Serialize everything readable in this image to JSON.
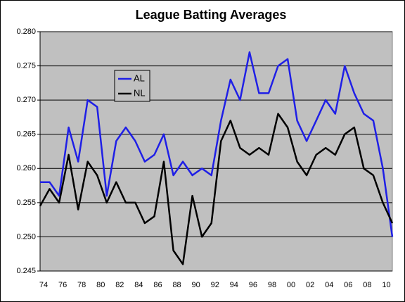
{
  "chart_data": {
    "type": "line",
    "title": "League Batting Averages",
    "categories": [
      "74",
      null,
      "76",
      null,
      "78",
      null,
      "80",
      null,
      "82",
      null,
      "84",
      null,
      "86",
      null,
      "88",
      null,
      "90",
      null,
      "92",
      null,
      "94",
      null,
      "96",
      null,
      "98",
      null,
      "00",
      null,
      "02",
      null,
      "04",
      null,
      "06",
      null,
      "08",
      null,
      "10",
      null
    ],
    "series": [
      {
        "name": "AL",
        "color": "#1f1fe6",
        "values": [
          0.258,
          0.258,
          0.256,
          0.266,
          0.261,
          0.27,
          0.269,
          0.256,
          0.264,
          0.266,
          0.264,
          0.261,
          0.262,
          0.265,
          0.259,
          0.261,
          0.259,
          0.26,
          0.259,
          0.267,
          0.273,
          0.27,
          0.277,
          0.271,
          0.271,
          0.275,
          0.276,
          0.267,
          0.264,
          0.267,
          0.27,
          0.268,
          0.275,
          0.271,
          0.268,
          0.267,
          0.26,
          0.25
        ]
      },
      {
        "name": "NL",
        "color": "#000000",
        "values": [
          0.2545,
          0.257,
          0.255,
          0.262,
          0.254,
          0.261,
          0.259,
          0.255,
          0.258,
          0.255,
          0.255,
          0.252,
          0.253,
          0.261,
          0.248,
          0.246,
          0.256,
          0.25,
          0.252,
          0.264,
          0.267,
          0.263,
          0.262,
          0.263,
          0.262,
          0.268,
          0.266,
          0.261,
          0.259,
          0.262,
          0.263,
          0.262,
          0.265,
          0.266,
          0.26,
          0.259,
          0.255,
          0.252
        ]
      }
    ],
    "ylim": [
      0.245,
      0.28
    ],
    "yticks": [
      {
        "value": 0.245,
        "label": "0.245"
      },
      {
        "value": 0.25,
        "label": "0.250"
      },
      {
        "value": 0.255,
        "label": "0.255"
      },
      {
        "value": 0.26,
        "label": "0.260"
      },
      {
        "value": 0.265,
        "label": "0.265"
      },
      {
        "value": 0.27,
        "label": "0.270"
      },
      {
        "value": 0.275,
        "label": "0.275"
      },
      {
        "value": 0.28,
        "label": "0.280"
      }
    ],
    "grid": true,
    "legend": "upper-left"
  }
}
